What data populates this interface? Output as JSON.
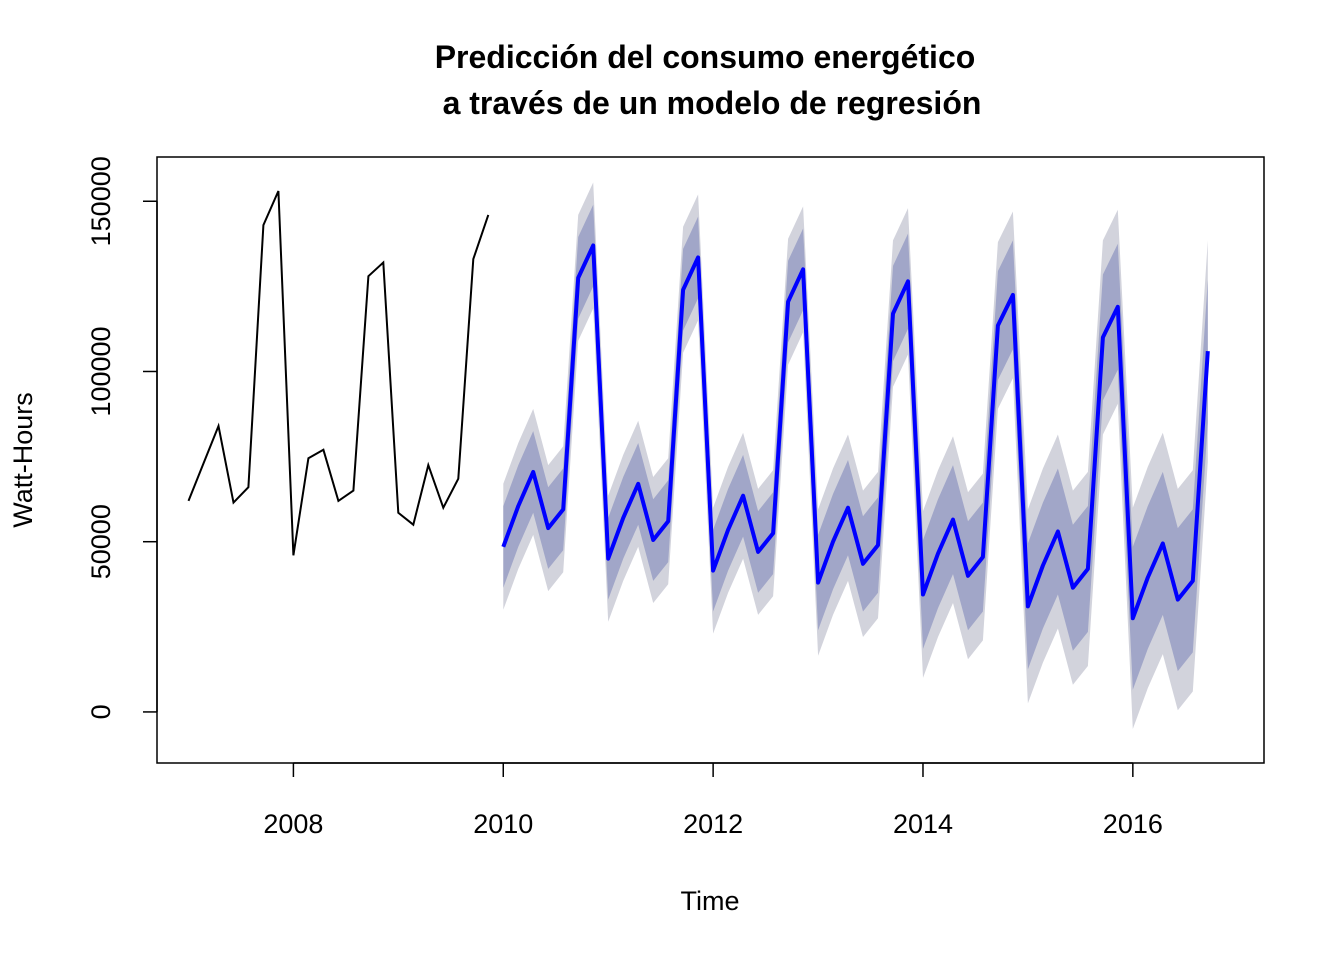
{
  "chart_data": {
    "type": "line",
    "title_line1": "Predicción del consumo energético",
    "title_line2": "a través de un modelo de regresión",
    "xlabel": "Time",
    "ylabel": "Watt-Hours",
    "xlim": [
      2006.7,
      2017.25
    ],
    "ylim": [
      -15000,
      163000
    ],
    "x_ticks": [
      "2008",
      "2010",
      "2012",
      "2014",
      "2016"
    ],
    "y_ticks": [
      "0",
      "50000",
      "100000",
      "150000"
    ],
    "colors": {
      "history": "#000000",
      "forecast": "#0000ff",
      "band80": "#a1a6c8",
      "band95": "#d2d3dc"
    },
    "series": [
      {
        "x": [
          2007.0,
          2007.1429,
          2007.2857,
          2007.4286,
          2007.5714,
          2007.7143,
          2007.8571,
          2008.0,
          2008.1429,
          2008.2857,
          2008.4286,
          2008.5714,
          2008.7143,
          2008.8571,
          2009.0,
          2009.1429,
          2009.2857,
          2009.4286,
          2009.5714,
          2009.7143,
          2009.8571
        ],
        "values": [
          62000,
          73000,
          84000,
          61500,
          66000,
          143000,
          153000,
          46000,
          74500,
          77000,
          62000,
          65000,
          128000,
          132000,
          58500,
          55000,
          72500,
          60000,
          68500,
          133000,
          146000
        ]
      },
      {
        "x": [
          2010.0,
          2010.1429,
          2010.2857,
          2010.4286,
          2010.5714,
          2010.7143,
          2010.8571,
          2011.0,
          2011.1429,
          2011.2857,
          2011.4286,
          2011.5714,
          2011.7143,
          2011.8571,
          2012.0,
          2012.1429,
          2012.2857,
          2012.4286,
          2012.5714,
          2012.7143,
          2012.8571,
          2013.0,
          2013.1429,
          2013.2857,
          2013.4286,
          2013.5714,
          2013.7143,
          2013.8571,
          2014.0,
          2014.1429,
          2014.2857,
          2014.4286,
          2014.5714,
          2014.7143,
          2014.8571,
          2015.0,
          2015.1429,
          2015.2857,
          2015.4286,
          2015.5714,
          2015.7143,
          2015.8571,
          2016.0,
          2016.1429,
          2016.2857,
          2016.4286,
          2016.5714,
          2016.7143
        ],
        "values": [
          48500,
          60500,
          70500,
          54000,
          59500,
          127500,
          137000,
          45000,
          57000,
          67000,
          50500,
          56000,
          124000,
          133500,
          41500,
          53500,
          63500,
          47000,
          52500,
          120500,
          130000,
          38000,
          50000,
          60000,
          43500,
          49000,
          117000,
          126500,
          34500,
          46500,
          56500,
          40000,
          45500,
          113500,
          122500,
          31000,
          43000,
          53000,
          36500,
          42000,
          110000,
          119000,
          27500,
          39500,
          49500,
          33000,
          38500,
          106000
        ],
        "lo80": [
          36500,
          48500,
          58500,
          42000,
          47500,
          115500,
          125000,
          33000,
          45000,
          55000,
          38500,
          44000,
          112000,
          121500,
          29500,
          41500,
          51500,
          35000,
          40500,
          108500,
          118000,
          24000,
          36000,
          46000,
          29500,
          35000,
          103000,
          112500,
          18500,
          30500,
          40500,
          24000,
          29500,
          97500,
          106500,
          12500,
          24500,
          34500,
          18000,
          23500,
          91500,
          100500,
          6500,
          18500,
          28500,
          12000,
          17500,
          85000
        ],
        "hi80": [
          60500,
          72500,
          82500,
          66000,
          71500,
          139500,
          149000,
          57000,
          69000,
          79000,
          62500,
          68000,
          136000,
          145500,
          53500,
          65500,
          75500,
          59000,
          64500,
          132500,
          142000,
          52000,
          64000,
          74000,
          57500,
          63000,
          131000,
          140500,
          50500,
          62500,
          72500,
          56000,
          61500,
          129500,
          138500,
          49500,
          61500,
          71500,
          55000,
          60500,
          128500,
          137500,
          48500,
          60500,
          70500,
          54000,
          59500,
          127000
        ],
        "lo95": [
          30000,
          42000,
          52000,
          35500,
          41000,
          109000,
          118500,
          26500,
          38500,
          48500,
          32000,
          37500,
          105500,
          115000,
          23000,
          35000,
          45000,
          28500,
          34000,
          102000,
          111500,
          16500,
          28500,
          38500,
          22000,
          27500,
          95500,
          105000,
          10000,
          22000,
          32000,
          15500,
          21000,
          89000,
          98000,
          2500,
          14500,
          24500,
          8000,
          13500,
          81500,
          90500,
          -5000,
          7000,
          17000,
          500,
          6000,
          73500
        ],
        "hi95": [
          67000,
          79000,
          89000,
          72500,
          78000,
          146000,
          155500,
          63500,
          75500,
          85500,
          69000,
          74500,
          142500,
          152000,
          60000,
          72000,
          82000,
          65500,
          71000,
          139000,
          148500,
          59500,
          71500,
          81500,
          65000,
          70500,
          138500,
          148000,
          59000,
          71000,
          81000,
          64500,
          70000,
          138000,
          147000,
          59500,
          71500,
          81500,
          65000,
          70500,
          138500,
          147500,
          60000,
          72000,
          82000,
          65500,
          71000,
          138500
        ]
      }
    ]
  }
}
